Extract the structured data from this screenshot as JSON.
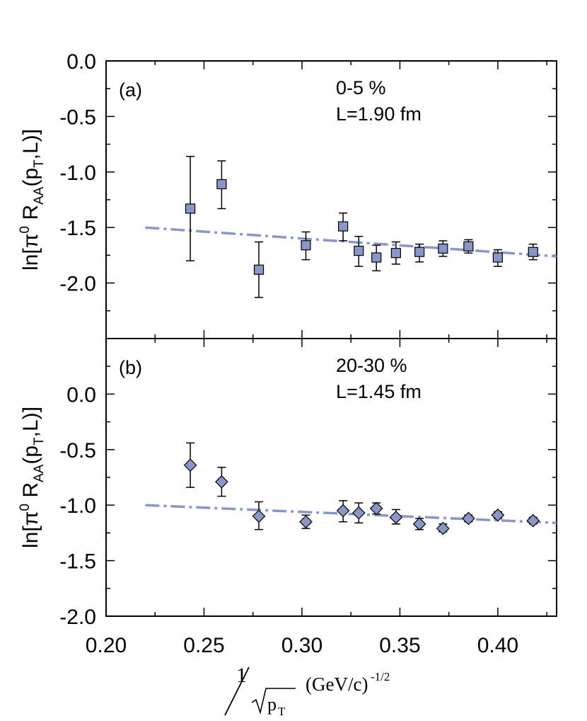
{
  "chart_data": [
    {
      "type": "scatter",
      "panel_label": "(a)",
      "annotation_centrality": "0-5 %",
      "annotation_length": "L=1.90 fm",
      "ylabel_parts": {
        "ln": "ln[",
        "pi": "π",
        "zero": "0",
        "R": " R",
        "AA": "AA",
        "open": "(p",
        "T": "T",
        "close": ",L)]"
      },
      "xlim": [
        0.2,
        0.43
      ],
      "ylim": [
        -2.5,
        0.0
      ],
      "yticks": [
        0.0,
        -0.5,
        -1.0,
        -1.5,
        -2.0
      ],
      "ytick_labels": [
        "0.0",
        "-0.5",
        "-1.0",
        "-1.5",
        "-2.0"
      ],
      "marker": "square",
      "color": "#8896c8",
      "points": [
        {
          "x": 0.243,
          "y": -1.33,
          "lo": -1.8,
          "hi": -0.86
        },
        {
          "x": 0.259,
          "y": -1.11,
          "lo": -1.33,
          "hi": -0.9
        },
        {
          "x": 0.278,
          "y": -1.88,
          "lo": -2.13,
          "hi": -1.63
        },
        {
          "x": 0.302,
          "y": -1.66,
          "lo": -1.79,
          "hi": -1.54
        },
        {
          "x": 0.321,
          "y": -1.49,
          "lo": -1.62,
          "hi": -1.37
        },
        {
          "x": 0.329,
          "y": -1.71,
          "lo": -1.85,
          "hi": -1.58
        },
        {
          "x": 0.338,
          "y": -1.77,
          "lo": -1.89,
          "hi": -1.66
        },
        {
          "x": 0.348,
          "y": -1.73,
          "lo": -1.83,
          "hi": -1.63
        },
        {
          "x": 0.36,
          "y": -1.72,
          "lo": -1.81,
          "hi": -1.65
        },
        {
          "x": 0.372,
          "y": -1.69,
          "lo": -1.76,
          "hi": -1.62
        },
        {
          "x": 0.385,
          "y": -1.67,
          "lo": -1.73,
          "hi": -1.61
        },
        {
          "x": 0.4,
          "y": -1.77,
          "lo": -1.85,
          "hi": -1.7
        },
        {
          "x": 0.418,
          "y": -1.72,
          "lo": -1.79,
          "hi": -1.65
        }
      ],
      "fit_line": {
        "x": [
          0.22,
          0.43
        ],
        "y": [
          -1.5,
          -1.76
        ]
      }
    },
    {
      "type": "scatter",
      "panel_label": "(b)",
      "annotation_centrality": "20-30 %",
      "annotation_length": "L=1.45 fm",
      "ylabel_parts": {
        "ln": "ln[",
        "pi": "π",
        "zero": "0",
        "R": " R",
        "AA": "AA",
        "open": "(p",
        "T": "T",
        "close": ",L)]"
      },
      "xlim": [
        0.2,
        0.43
      ],
      "ylim": [
        -2.0,
        0.5
      ],
      "yticks": [
        0.0,
        -0.5,
        -1.0,
        -1.5,
        -2.0
      ],
      "ytick_labels": [
        "0.0",
        "-0.5",
        "-1.0",
        "-1.5",
        "-2.0"
      ],
      "marker": "diamond",
      "color": "#8896c8",
      "points": [
        {
          "x": 0.243,
          "y": -0.64,
          "lo": -0.84,
          "hi": -0.44
        },
        {
          "x": 0.259,
          "y": -0.79,
          "lo": -0.92,
          "hi": -0.66
        },
        {
          "x": 0.278,
          "y": -1.1,
          "lo": -1.22,
          "hi": -0.97
        },
        {
          "x": 0.302,
          "y": -1.15,
          "lo": -1.21,
          "hi": -1.09
        },
        {
          "x": 0.321,
          "y": -1.05,
          "lo": -1.15,
          "hi": -0.96
        },
        {
          "x": 0.329,
          "y": -1.07,
          "lo": -1.16,
          "hi": -0.98
        },
        {
          "x": 0.338,
          "y": -1.03,
          "lo": -1.08,
          "hi": -0.98
        },
        {
          "x": 0.348,
          "y": -1.11,
          "lo": -1.17,
          "hi": -1.04
        },
        {
          "x": 0.36,
          "y": -1.17,
          "lo": -1.22,
          "hi": -1.12
        },
        {
          "x": 0.372,
          "y": -1.21,
          "lo": -1.24,
          "hi": -1.17
        },
        {
          "x": 0.385,
          "y": -1.12,
          "lo": -1.15,
          "hi": -1.09
        },
        {
          "x": 0.4,
          "y": -1.09,
          "lo": -1.12,
          "hi": -1.06
        },
        {
          "x": 0.418,
          "y": -1.14,
          "lo": -1.17,
          "hi": -1.11
        }
      ],
      "fit_line": {
        "x": [
          0.22,
          0.43
        ],
        "y": [
          -1.0,
          -1.16
        ]
      }
    }
  ],
  "x_axis": {
    "ticks": [
      0.2,
      0.25,
      0.3,
      0.35,
      0.4
    ],
    "tick_labels": [
      "0.20",
      "0.25",
      "0.30",
      "0.35",
      "0.40"
    ],
    "label_parts": {
      "numerator": "1",
      "radicand": "p",
      "radicand_sub": "T",
      "units": "(GeV/c)",
      "exponent": "-1/2"
    }
  },
  "colors": {
    "marker_fill": "#8896c8",
    "fit_line": "#8896c8",
    "axes": "#000000"
  }
}
